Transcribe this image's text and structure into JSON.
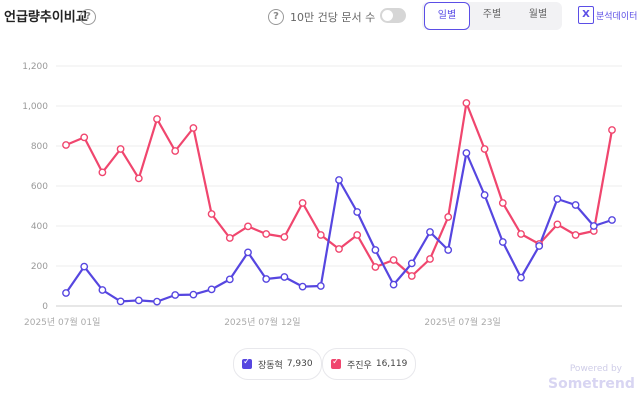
{
  "header": {
    "title": "언급량추이비교",
    "help_glyph": "?",
    "toggle_label": "10만 건당 문서 수",
    "period_tabs": [
      {
        "label": "일별",
        "active": true
      },
      {
        "label": "주별",
        "active": false
      },
      {
        "label": "월별",
        "active": false
      }
    ],
    "export_label": "분석데이터"
  },
  "colors": {
    "accent": "#5b4ee6",
    "series1": "#5646e0",
    "series2": "#f0466e"
  },
  "chart_data": {
    "type": "line",
    "x": [
      "2025-07-01",
      "2025-07-02",
      "2025-07-03",
      "2025-07-04",
      "2025-07-05",
      "2025-07-06",
      "2025-07-07",
      "2025-07-08",
      "2025-07-09",
      "2025-07-10",
      "2025-07-11",
      "2025-07-12",
      "2025-07-13",
      "2025-07-14",
      "2025-07-15",
      "2025-07-16",
      "2025-07-17",
      "2025-07-18",
      "2025-07-19",
      "2025-07-20",
      "2025-07-21",
      "2025-07-22",
      "2025-07-23",
      "2025-07-24",
      "2025-07-25",
      "2025-07-26",
      "2025-07-27",
      "2025-07-28",
      "2025-07-29",
      "2025-07-30",
      "2025-07-31"
    ],
    "x_ticks": [
      {
        "x": "2025-07-01",
        "label": "2025년 07월 01일"
      },
      {
        "x": "2025-07-12",
        "label": "2025년 07월 12일"
      },
      {
        "x": "2025-07-23",
        "label": "2025년 07월 23일"
      }
    ],
    "y_ticks": [
      "0",
      "200",
      "400",
      "600",
      "800",
      "1,000",
      "1,200"
    ],
    "ylim": [
      0,
      1200
    ],
    "grid": true,
    "legend_position": "bottom-center",
    "series": [
      {
        "name": "장동혁",
        "total": "7,930",
        "values": [
          65,
          197,
          80,
          23,
          28,
          22,
          55,
          57,
          83,
          133,
          268,
          135,
          145,
          97,
          100,
          630,
          470,
          280,
          107,
          213,
          370,
          280,
          765,
          555,
          320,
          142,
          300,
          535,
          505,
          400,
          430
        ]
      },
      {
        "name": "주진우",
        "total": "16,119",
        "values": [
          805,
          843,
          668,
          785,
          638,
          935,
          775,
          890,
          460,
          340,
          398,
          360,
          345,
          515,
          355,
          285,
          355,
          195,
          230,
          150,
          235,
          445,
          1015,
          785,
          515,
          360,
          310,
          408,
          355,
          375,
          880
        ]
      }
    ]
  },
  "footer": {
    "powered_by": "Powered by",
    "brand": "Sometrend"
  }
}
